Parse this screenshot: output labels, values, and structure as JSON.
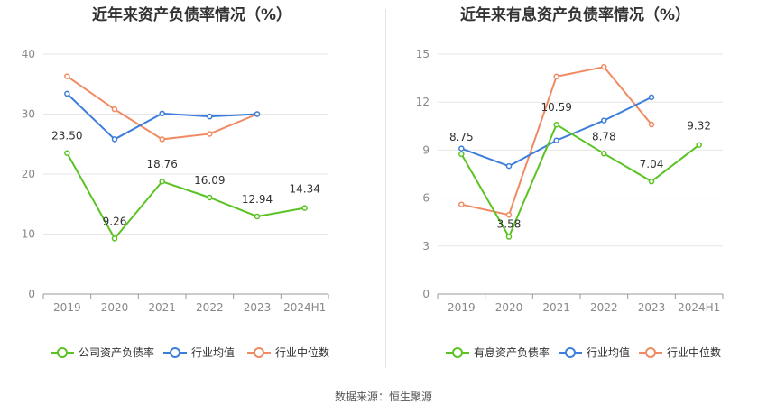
{
  "charts": [
    {
      "title": "近年来资产负债率情况（%）",
      "chart_data": {
        "type": "line",
        "title": "近年来资产负债率情况（%）",
        "categories": [
          "2019",
          "2020",
          "2021",
          "2022",
          "2023",
          "2024H1"
        ],
        "ylim": [
          0,
          40
        ],
        "yticks": [
          0,
          10,
          20,
          30,
          40
        ],
        "grid": true,
        "legend_position": "bottom",
        "series": [
          {
            "name": "公司资产负债率",
            "color": "#5ac322",
            "values": [
              23.5,
              9.26,
              18.76,
              16.09,
              12.94,
              14.34
            ],
            "labels": [
              "23.50",
              "9.26",
              "18.76",
              "16.09",
              "12.94",
              "14.34"
            ]
          },
          {
            "name": "行业均值",
            "color": "#3d7ddb",
            "values": [
              33.4,
              25.8,
              30.1,
              29.6,
              30.0,
              null
            ],
            "labels": []
          },
          {
            "name": "行业中位数",
            "color": "#ef8a62",
            "values": [
              36.3,
              30.8,
              25.8,
              26.7,
              30.0,
              null
            ],
            "labels": []
          }
        ]
      }
    },
    {
      "title": "近年来有息资产负债率情况（%）",
      "chart_data": {
        "type": "line",
        "title": "近年来有息资产负债率情况（%）",
        "categories": [
          "2019",
          "2020",
          "2021",
          "2022",
          "2023",
          "2024H1"
        ],
        "ylim": [
          0,
          15
        ],
        "yticks": [
          0,
          3,
          6,
          9,
          12,
          15
        ],
        "grid": true,
        "legend_position": "bottom",
        "series": [
          {
            "name": "有息资产负债率",
            "color": "#5ac322",
            "values": [
              8.75,
              3.58,
              10.59,
              8.78,
              7.04,
              9.32
            ],
            "labels": [
              "8.75",
              "3.58",
              "10.59",
              "8.78",
              "7.04",
              "9.32"
            ]
          },
          {
            "name": "行业均值",
            "color": "#3d7ddb",
            "values": [
              9.1,
              8.0,
              9.6,
              10.85,
              12.3,
              null
            ],
            "labels": []
          },
          {
            "name": "行业中位数",
            "color": "#ef8a62",
            "values": [
              5.6,
              4.95,
              13.6,
              14.2,
              10.6,
              null
            ],
            "labels": []
          }
        ]
      }
    }
  ],
  "source": "数据来源：恒生聚源"
}
